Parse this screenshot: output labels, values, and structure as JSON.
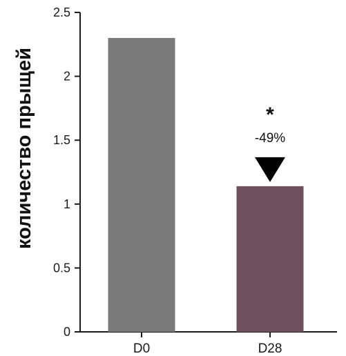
{
  "chart_data": {
    "type": "bar",
    "categories": [
      "D0",
      "D28"
    ],
    "values": [
      2.3,
      1.14
    ],
    "ylabel": "количество прыщей",
    "xlabel": "",
    "title": "",
    "ylim": [
      0,
      2.5
    ],
    "yticks": [
      "0",
      "0.5",
      "1",
      "1.5",
      "2",
      "2.5"
    ],
    "bar_colors": [
      "#7a7a7a",
      "#6e4f5c"
    ],
    "grid": false,
    "annotation": {
      "category": "D28",
      "significance": "*",
      "change_label": "-49%",
      "marker": "down-triangle"
    }
  }
}
